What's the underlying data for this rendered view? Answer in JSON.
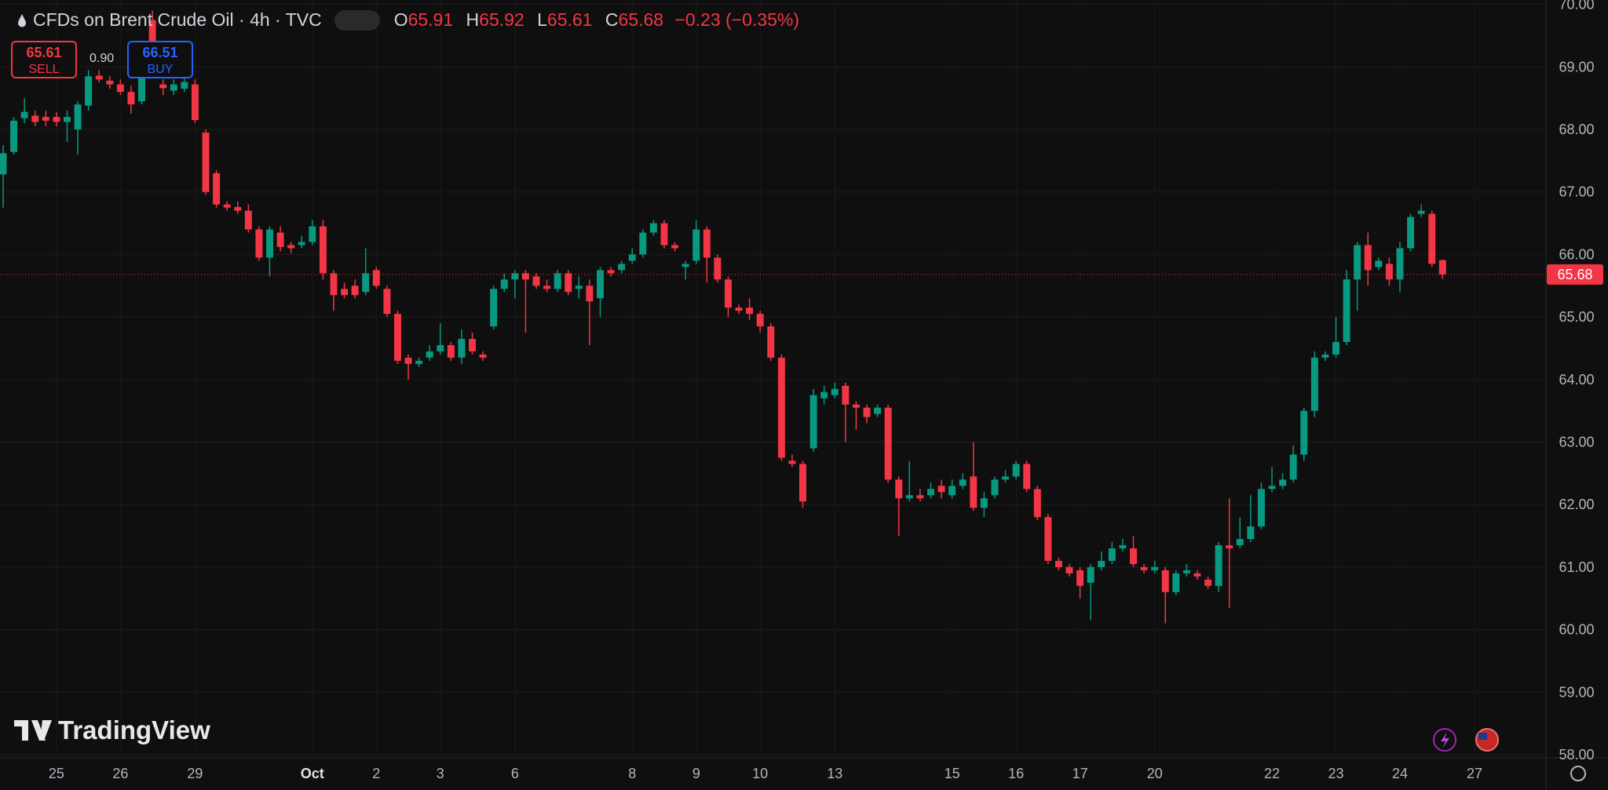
{
  "chart_data": {
    "type": "candlestick",
    "symbol": "CFDs on Brent Crude Oil · 4h · TVC",
    "ohlc_labels": [
      "O",
      "H",
      "L",
      "C"
    ],
    "ohlc_values": [
      65.91,
      65.92,
      65.61,
      65.68
    ],
    "change": "−0.23 (−0.35%)",
    "sell_price": 65.61,
    "sell_label": "SELL",
    "spread": "0.90",
    "buy_price": 66.51,
    "buy_label": "BUY",
    "brand": "TradingView",
    "last_price": 65.68,
    "up_color": "#089981",
    "down_color": "#f23645",
    "grid": true,
    "ylim": [
      57.95,
      70.07
    ],
    "yticks": [
      {
        "value": 58,
        "label": "58.00"
      },
      {
        "value": 59,
        "label": "59.00"
      },
      {
        "value": 60,
        "label": "60.00"
      },
      {
        "value": 61,
        "label": "61.00"
      },
      {
        "value": 62,
        "label": "62.00"
      },
      {
        "value": 63,
        "label": "63.00"
      },
      {
        "value": 64,
        "label": "64.00"
      },
      {
        "value": 65,
        "label": "65.00"
      },
      {
        "value": 66,
        "label": "66.00"
      },
      {
        "value": 67,
        "label": "67.00"
      },
      {
        "value": 68,
        "label": "68.00"
      },
      {
        "value": 69,
        "label": "69.00"
      },
      {
        "value": 70,
        "label": "70.00"
      }
    ],
    "categories": [
      null,
      null,
      null,
      null,
      null,
      "25",
      null,
      null,
      null,
      null,
      null,
      "26",
      null,
      null,
      null,
      null,
      null,
      null,
      "29",
      null,
      null,
      null,
      null,
      null,
      null,
      null,
      null,
      null,
      null,
      "Oct",
      null,
      null,
      null,
      null,
      null,
      "2",
      null,
      null,
      null,
      null,
      null,
      "3",
      null,
      null,
      null,
      null,
      null,
      null,
      "6",
      null,
      null,
      null,
      null,
      null,
      null,
      null,
      null,
      null,
      null,
      "8",
      null,
      null,
      null,
      null,
      null,
      "9",
      null,
      null,
      null,
      null,
      null,
      "10",
      null,
      null,
      null,
      null,
      null,
      null,
      "13",
      null,
      null,
      null,
      null,
      null,
      null,
      null,
      null,
      null,
      null,
      "15",
      null,
      null,
      null,
      null,
      null,
      "16",
      null,
      null,
      null,
      null,
      null,
      "17",
      null,
      null,
      null,
      null,
      null,
      null,
      "20",
      null,
      null,
      null,
      null,
      null,
      null,
      null,
      null,
      null,
      null,
      "22",
      null,
      null,
      null,
      null,
      null,
      "23",
      null,
      null,
      null,
      null,
      null,
      "24",
      null,
      null,
      null,
      null,
      null,
      null,
      "27"
    ],
    "open": [
      67.28,
      67.64,
      68.18,
      68.22,
      68.2,
      68.2,
      68.12,
      68.0,
      68.38,
      68.86,
      68.78,
      68.72,
      68.6,
      68.45,
      69.75,
      68.72,
      68.62,
      68.65,
      68.72,
      67.95,
      67.3,
      66.8,
      66.76,
      66.7,
      66.4,
      65.95,
      66.35,
      66.15,
      66.15,
      66.2,
      66.45,
      65.7,
      65.45,
      65.5,
      65.4,
      65.75,
      65.45,
      65.05,
      64.35,
      64.25,
      64.35,
      64.45,
      64.55,
      64.35,
      64.65,
      64.4,
      64.85,
      65.45,
      65.6,
      65.7,
      65.65,
      65.5,
      65.45,
      65.7,
      65.45,
      65.5,
      65.3,
      65.75,
      65.75,
      65.9,
      66.0,
      66.35,
      66.5,
      66.15,
      65.8,
      65.9,
      66.4,
      65.95,
      65.6,
      65.15,
      65.15,
      65.05,
      64.85,
      64.35,
      62.7,
      62.65,
      62.9,
      63.7,
      63.75,
      63.9,
      63.6,
      63.55,
      63.45,
      63.55,
      62.4,
      62.1,
      62.15,
      62.15,
      62.3,
      62.15,
      62.3,
      62.45,
      61.95,
      62.15,
      62.4,
      62.45,
      62.65,
      62.25,
      61.8,
      61.1,
      61.0,
      60.95,
      60.75,
      61.0,
      61.1,
      61.3,
      61.3,
      61.0,
      60.95,
      60.95,
      60.6,
      60.9,
      60.9,
      60.8,
      60.7,
      61.35,
      61.35,
      61.45,
      61.65,
      62.25,
      62.3,
      62.4,
      62.8,
      63.5,
      64.35,
      64.4,
      64.6,
      65.6,
      66.15,
      65.8,
      65.85,
      65.6,
      66.1,
      66.65,
      66.65,
      65.91,
      null,
      null,
      null
    ],
    "high": [
      67.75,
      68.2,
      68.5,
      68.3,
      68.3,
      68.28,
      68.3,
      68.45,
      68.95,
      68.95,
      68.85,
      68.8,
      68.7,
      69.35,
      69.9,
      68.8,
      68.8,
      68.85,
      68.8,
      68.0,
      67.35,
      66.85,
      66.85,
      66.8,
      66.45,
      66.45,
      66.45,
      66.2,
      66.3,
      66.55,
      66.55,
      65.75,
      65.55,
      65.6,
      66.1,
      65.8,
      65.5,
      65.1,
      64.4,
      64.35,
      64.55,
      64.9,
      64.6,
      64.8,
      64.75,
      64.45,
      65.5,
      65.7,
      65.75,
      65.75,
      65.7,
      65.6,
      65.75,
      65.75,
      65.65,
      65.6,
      65.8,
      65.8,
      65.9,
      66.1,
      66.4,
      66.55,
      66.55,
      66.2,
      65.9,
      66.55,
      66.45,
      66.0,
      65.65,
      65.2,
      65.3,
      65.1,
      64.9,
      64.4,
      62.8,
      62.7,
      63.85,
      63.9,
      63.95,
      63.95,
      63.65,
      63.6,
      63.6,
      63.6,
      62.45,
      62.7,
      62.25,
      62.35,
      62.4,
      62.4,
      62.5,
      63.0,
      62.2,
      62.45,
      62.55,
      62.7,
      62.7,
      62.3,
      61.85,
      61.15,
      61.05,
      61.0,
      61.05,
      61.25,
      61.4,
      61.45,
      61.5,
      61.05,
      61.1,
      61.0,
      60.95,
      61.05,
      60.95,
      60.85,
      61.4,
      62.1,
      61.8,
      62.15,
      62.35,
      62.6,
      62.5,
      62.95,
      63.55,
      64.45,
      64.45,
      65.0,
      65.75,
      66.2,
      66.35,
      65.95,
      65.95,
      66.2,
      66.65,
      66.8,
      66.7,
      65.92,
      null,
      null,
      null
    ],
    "low": [
      66.75,
      67.6,
      68.1,
      68.05,
      68.05,
      68.05,
      67.8,
      67.6,
      68.3,
      68.75,
      68.65,
      68.55,
      68.25,
      68.4,
      69.1,
      68.55,
      68.55,
      68.6,
      68.1,
      66.95,
      66.75,
      66.7,
      66.65,
      66.35,
      65.9,
      65.65,
      66.05,
      66.02,
      66.1,
      66.15,
      65.6,
      65.1,
      65.3,
      65.3,
      65.35,
      65.45,
      65.0,
      64.25,
      64.0,
      64.2,
      64.3,
      64.4,
      64.3,
      64.25,
      64.4,
      64.3,
      64.8,
      65.4,
      65.3,
      64.75,
      65.45,
      65.4,
      65.4,
      65.35,
      65.3,
      64.55,
      65.0,
      65.65,
      65.7,
      65.85,
      65.95,
      66.3,
      66.1,
      66.05,
      65.6,
      65.85,
      65.55,
      65.55,
      65.0,
      65.05,
      64.95,
      64.75,
      64.3,
      62.7,
      62.6,
      61.95,
      62.85,
      63.6,
      63.7,
      63.0,
      63.2,
      63.3,
      63.4,
      62.35,
      61.5,
      62.05,
      62.05,
      62.1,
      62.1,
      62.1,
      62.25,
      61.9,
      61.8,
      62.1,
      62.35,
      62.4,
      62.2,
      61.75,
      61.05,
      60.95,
      60.85,
      60.5,
      60.15,
      60.95,
      61.05,
      61.25,
      61.0,
      60.9,
      60.9,
      60.1,
      60.55,
      60.85,
      60.8,
      60.65,
      60.6,
      60.35,
      61.3,
      61.4,
      61.6,
      62.2,
      62.25,
      62.35,
      62.7,
      63.4,
      64.3,
      64.35,
      64.55,
      65.1,
      65.5,
      65.75,
      65.5,
      65.4,
      66.05,
      66.6,
      65.8,
      65.61,
      null,
      null,
      null
    ],
    "close": [
      67.62,
      68.14,
      68.28,
      68.12,
      68.14,
      68.12,
      68.2,
      68.4,
      68.85,
      68.8,
      68.72,
      68.6,
      68.4,
      69.2,
      69.2,
      68.66,
      68.72,
      68.76,
      68.15,
      67.0,
      66.8,
      66.75,
      66.7,
      66.4,
      65.95,
      66.4,
      66.12,
      66.1,
      66.2,
      66.45,
      65.7,
      65.35,
      65.35,
      65.35,
      65.7,
      65.5,
      65.05,
      64.3,
      64.25,
      64.3,
      64.45,
      64.55,
      64.35,
      64.65,
      64.45,
      64.35,
      65.45,
      65.6,
      65.7,
      65.6,
      65.5,
      65.45,
      65.7,
      65.4,
      65.5,
      65.25,
      65.75,
      65.7,
      65.85,
      66.0,
      66.35,
      66.5,
      66.15,
      66.1,
      65.85,
      66.4,
      65.95,
      65.6,
      65.15,
      65.1,
      65.05,
      64.85,
      64.35,
      62.75,
      62.65,
      62.05,
      63.75,
      63.8,
      63.85,
      63.6,
      63.55,
      63.4,
      63.55,
      62.4,
      62.1,
      62.15,
      62.1,
      62.25,
      62.2,
      62.3,
      62.4,
      61.95,
      62.1,
      62.4,
      62.45,
      62.65,
      62.25,
      61.8,
      61.1,
      61.0,
      60.9,
      60.7,
      61.0,
      61.1,
      61.3,
      61.35,
      61.05,
      60.95,
      61.0,
      60.6,
      60.9,
      60.95,
      60.85,
      60.7,
      61.35,
      61.3,
      61.45,
      61.65,
      62.25,
      62.3,
      62.4,
      62.8,
      63.5,
      64.35,
      64.4,
      64.6,
      65.6,
      66.15,
      65.75,
      65.9,
      65.6,
      66.1,
      66.6,
      66.7,
      65.85,
      65.68,
      null,
      null,
      null
    ]
  }
}
